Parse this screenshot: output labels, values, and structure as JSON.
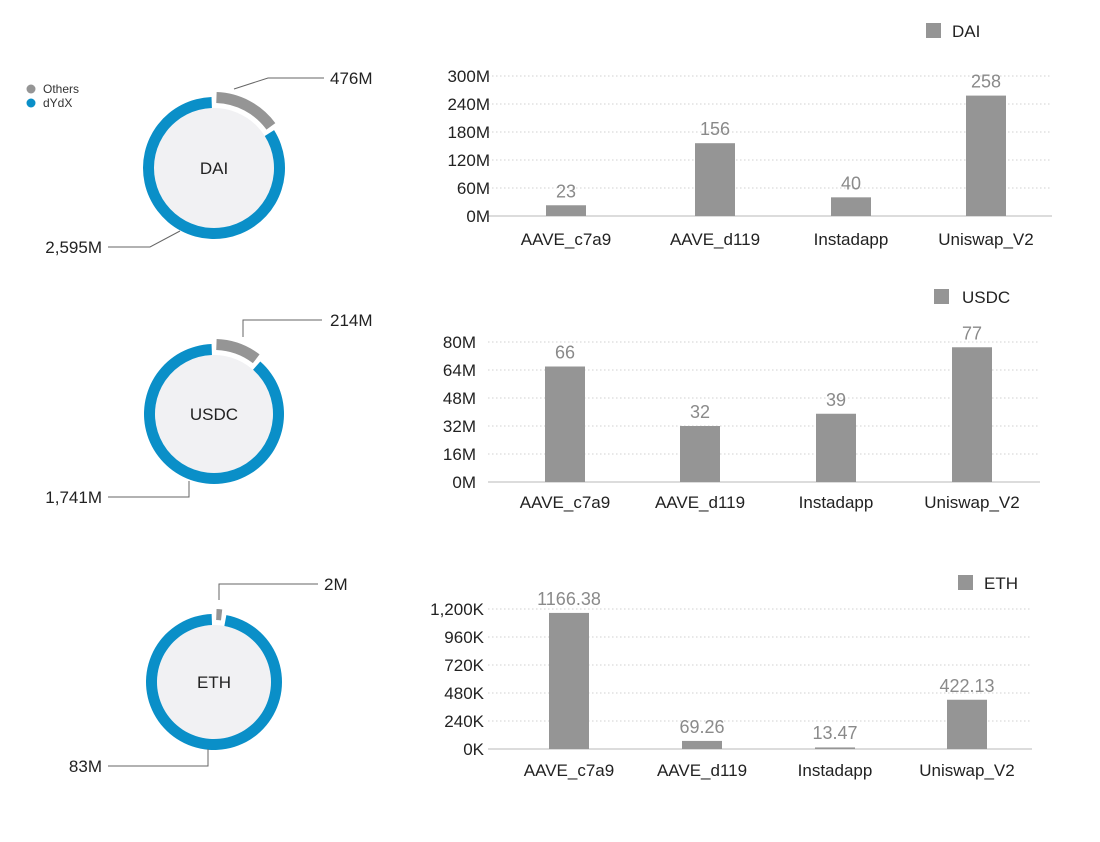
{
  "legend": {
    "items": [
      {
        "label": "Others",
        "color": "#959595"
      },
      {
        "label": "dYdX",
        "color": "#0a8fc8"
      }
    ]
  },
  "colors": {
    "others": "#959595",
    "dydx": "#0a8fc8",
    "ring_inner": "#f1f1f3",
    "bar": "#959595",
    "grid": "#d0d0d0",
    "value_label": "#8a8a8a"
  },
  "chart_data": [
    {
      "type": "pie",
      "center_label": "DAI",
      "slices": [
        {
          "name": "Others",
          "value": 476,
          "label": "476M"
        },
        {
          "name": "dYdX",
          "value": 2595,
          "label": "2,595M"
        }
      ]
    },
    {
      "type": "bar",
      "legend": "DAI",
      "categories": [
        "AAVE_c7a9",
        "AAVE_d119",
        "Instadapp",
        "Uniswap_V2"
      ],
      "values": [
        23,
        156,
        40,
        258
      ],
      "value_labels": [
        "23",
        "156",
        "40",
        "258"
      ],
      "ylim": [
        0,
        300
      ],
      "yticks": [
        0,
        60,
        120,
        180,
        240,
        300
      ],
      "ytick_labels": [
        "0M",
        "60M",
        "120M",
        "180M",
        "240M",
        "300M"
      ]
    },
    {
      "type": "pie",
      "center_label": "USDC",
      "slices": [
        {
          "name": "Others",
          "value": 214,
          "label": "214M"
        },
        {
          "name": "dYdX",
          "value": 1741,
          "label": "1,741M"
        }
      ]
    },
    {
      "type": "bar",
      "legend": "USDC",
      "categories": [
        "AAVE_c7a9",
        "AAVE_d119",
        "Instadapp",
        "Uniswap_V2"
      ],
      "values": [
        66,
        32,
        39,
        77
      ],
      "value_labels": [
        "66",
        "32",
        "39",
        "77"
      ],
      "ylim": [
        0,
        80
      ],
      "yticks": [
        0,
        16,
        32,
        48,
        64,
        80
      ],
      "ytick_labels": [
        "0M",
        "16M",
        "32M",
        "48M",
        "64M",
        "80M"
      ]
    },
    {
      "type": "pie",
      "center_label": "ETH",
      "slices": [
        {
          "name": "Others",
          "value": 2,
          "label": "2M"
        },
        {
          "name": "dYdX",
          "value": 83,
          "label": "83M"
        }
      ]
    },
    {
      "type": "bar",
      "legend": "ETH",
      "categories": [
        "AAVE_c7a9",
        "AAVE_d119",
        "Instadapp",
        "Uniswap_V2"
      ],
      "values": [
        1166.38,
        69.26,
        13.47,
        422.13
      ],
      "value_labels": [
        "1166.38",
        "69.26",
        "13.47",
        "422.13"
      ],
      "ylim": [
        0,
        1200
      ],
      "yticks": [
        0,
        240,
        480,
        720,
        960,
        1200
      ],
      "ytick_labels": [
        "0K",
        "240K",
        "480K",
        "720K",
        "960K",
        "1,200K"
      ]
    }
  ]
}
